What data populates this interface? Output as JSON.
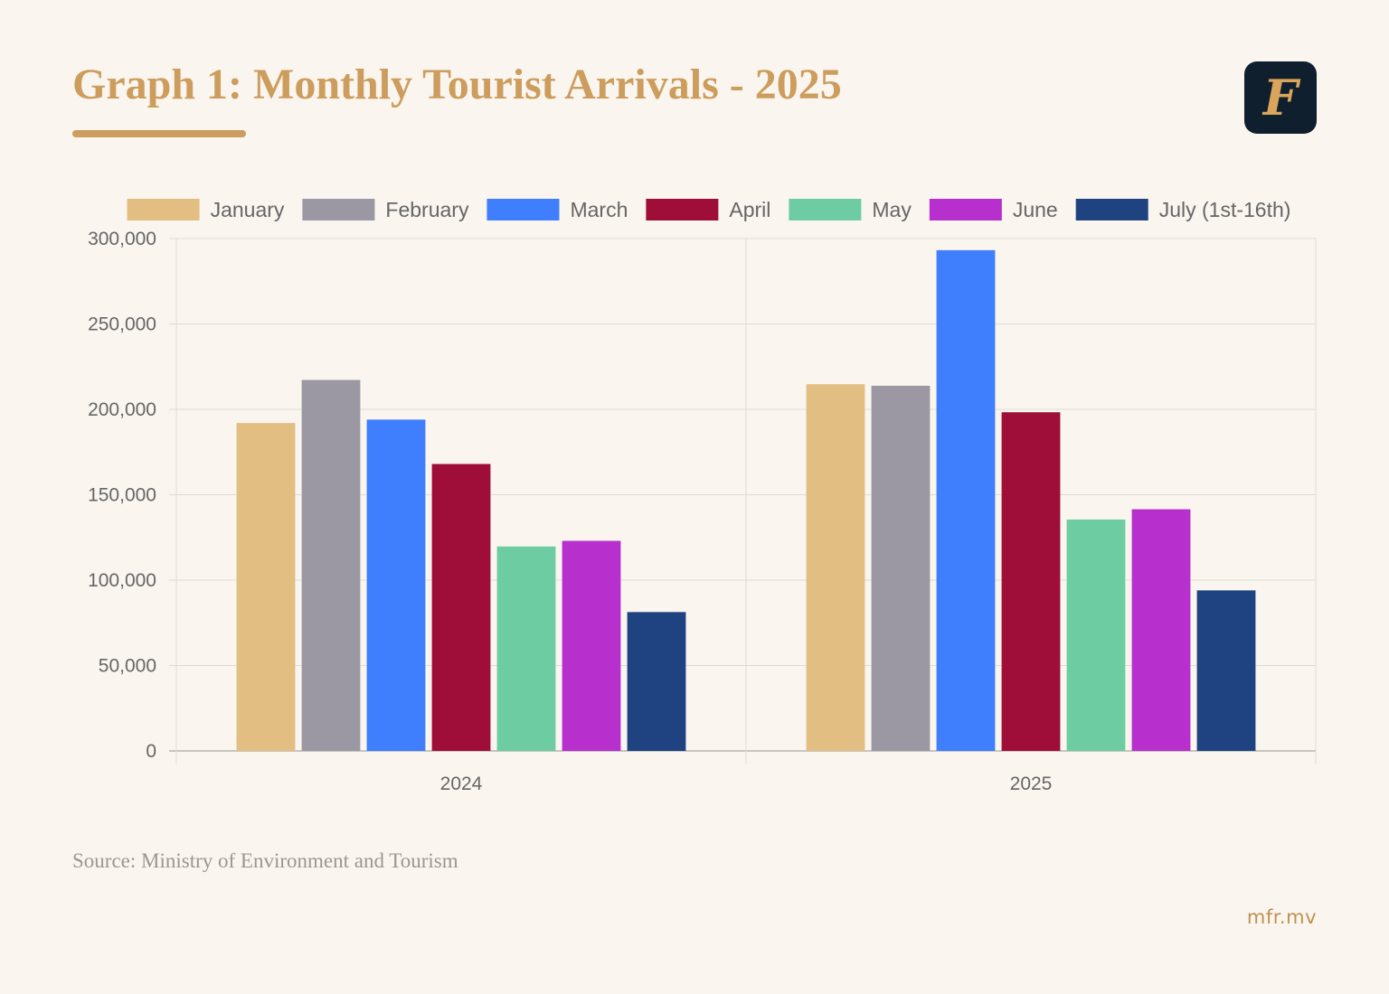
{
  "header": {
    "title": "Graph 1: Monthly Tourist Arrivals - 2025",
    "logo_letter": "F"
  },
  "footer": {
    "source": "Source: Ministry of Environment and Tourism",
    "site": "mfr.mv"
  },
  "colors": {
    "title": "#cc9d5c",
    "background": "#faf5ef",
    "logo_bg": "#0f1f2e",
    "grid": "#dedad4",
    "axis_text": "#666666"
  },
  "chart_data": {
    "type": "bar",
    "title": "Graph 1: Monthly Tourist Arrivals - 2025",
    "xlabel": "",
    "ylabel": "",
    "categories": [
      "2024",
      "2025"
    ],
    "ylim": [
      0,
      300000
    ],
    "yticks": [
      {
        "value": 0,
        "label": "0"
      },
      {
        "value": 50000,
        "label": "50,000"
      },
      {
        "value": 100000,
        "label": "100,000"
      },
      {
        "value": 150000,
        "label": "150,000"
      },
      {
        "value": 200000,
        "label": "200,000"
      },
      {
        "value": 250000,
        "label": "250,000"
      },
      {
        "value": 300000,
        "label": "300,000"
      }
    ],
    "grid": true,
    "legend_position": "top",
    "series": [
      {
        "name": "January",
        "color": "#e2be82",
        "values": [
          192000,
          214700
        ]
      },
      {
        "name": "February",
        "color": "#9b98a3",
        "values": [
          217200,
          213800
        ]
      },
      {
        "name": "March",
        "color": "#3f7efc",
        "values": [
          194000,
          293200
        ]
      },
      {
        "name": "April",
        "color": "#9e0e38",
        "values": [
          168000,
          198300
        ]
      },
      {
        "name": "May",
        "color": "#6dcca2",
        "values": [
          119700,
          135500
        ]
      },
      {
        "name": "June",
        "color": "#b72fcd",
        "values": [
          123000,
          141500
        ]
      },
      {
        "name": "July (1st-16th)",
        "color": "#1e4380",
        "values": [
          81300,
          94000
        ]
      }
    ]
  }
}
